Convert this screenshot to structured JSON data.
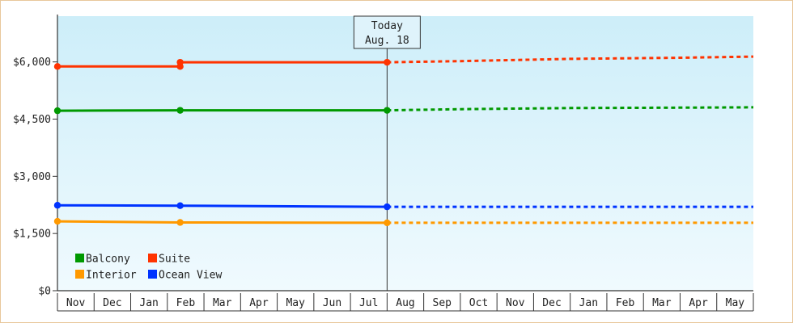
{
  "chart_data": {
    "type": "line",
    "title": "",
    "xlabel": "",
    "ylabel": "",
    "ylim": [
      0,
      7200
    ],
    "y_ticks": [
      0,
      1500,
      3000,
      4500,
      6000
    ],
    "y_tick_labels": [
      "$0",
      "$1,500",
      "$3,000",
      "$4,500",
      "$6,000"
    ],
    "x_tick_labels": [
      "Nov",
      "Dec",
      "Jan",
      "Feb",
      "Mar",
      "Apr",
      "May",
      "Jun",
      "Jul",
      "Aug",
      "Sep",
      "Oct",
      "Nov",
      "Dec",
      "Jan",
      "Feb",
      "Mar",
      "Apr",
      "May"
    ],
    "today_marker": {
      "line1": "Today",
      "line2": "Aug. 18",
      "month_index": 9.0
    },
    "legend_position": "bottom-left",
    "series": [
      {
        "name": "Suite",
        "color": "#ff3300",
        "history": [
          [
            0.0,
            5880
          ],
          [
            3.35,
            5880
          ],
          [
            3.35,
            5990
          ],
          [
            9.0,
            5990
          ]
        ],
        "forecast": [
          [
            9.0,
            5990
          ],
          [
            11.0,
            6020
          ],
          [
            14.0,
            6080
          ],
          [
            17.0,
            6110
          ],
          [
            19.0,
            6140
          ]
        ]
      },
      {
        "name": "Balcony",
        "color": "#009900",
        "history": [
          [
            0.0,
            4720
          ],
          [
            3.35,
            4730
          ],
          [
            9.0,
            4730
          ]
        ],
        "forecast": [
          [
            9.0,
            4730
          ],
          [
            11.0,
            4760
          ],
          [
            14.0,
            4790
          ],
          [
            17.0,
            4800
          ],
          [
            19.0,
            4810
          ]
        ]
      },
      {
        "name": "Ocean View",
        "color": "#0033ff",
        "history": [
          [
            0.0,
            2240
          ],
          [
            3.35,
            2230
          ],
          [
            9.0,
            2200
          ]
        ],
        "forecast": [
          [
            9.0,
            2200
          ],
          [
            19.0,
            2200
          ]
        ]
      },
      {
        "name": "Interior",
        "color": "#ff9900",
        "history": [
          [
            0.0,
            1820
          ],
          [
            3.35,
            1790
          ],
          [
            9.0,
            1780
          ]
        ],
        "forecast": [
          [
            9.0,
            1780
          ],
          [
            19.0,
            1780
          ]
        ]
      }
    ],
    "markers": {
      "Suite": [
        [
          0.0,
          5880
        ],
        [
          3.35,
          5880
        ],
        [
          3.35,
          5990
        ],
        [
          9.0,
          5990
        ]
      ],
      "Balcony": [
        [
          0.0,
          4720
        ],
        [
          3.35,
          4730
        ],
        [
          9.0,
          4730
        ]
      ],
      "Ocean View": [
        [
          0.0,
          2240
        ],
        [
          3.35,
          2230
        ],
        [
          9.0,
          2200
        ]
      ],
      "Interior": [
        [
          0.0,
          1820
        ],
        [
          3.35,
          1790
        ],
        [
          9.0,
          1780
        ]
      ]
    },
    "legend": [
      {
        "name": "Balcony",
        "color": "#009900"
      },
      {
        "name": "Suite",
        "color": "#ff3300"
      },
      {
        "name": "Interior",
        "color": "#ff9900"
      },
      {
        "name": "Ocean View",
        "color": "#0033ff"
      }
    ]
  }
}
